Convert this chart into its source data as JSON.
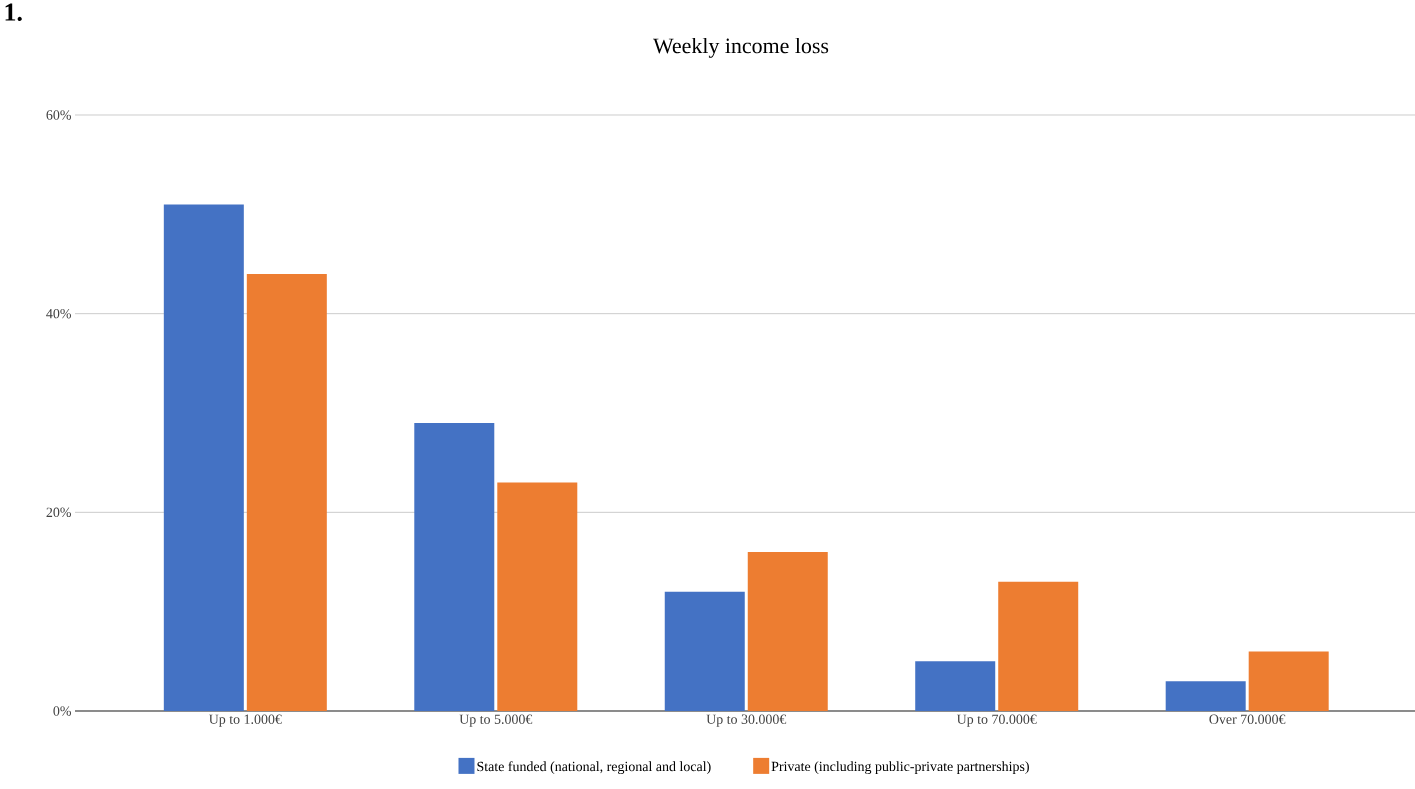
{
  "chart_data": {
    "type": "bar",
    "title": "Weekly income loss",
    "annotations": [
      "1."
    ],
    "categories": [
      "Up to 1.000€",
      "Up to 5.000€",
      "Up to 30.000€",
      "Up to 70.000€",
      "Over 70.000€"
    ],
    "series": [
      {
        "name": "State funded (national, regional and local)",
        "color": "#4472c4",
        "values": [
          51,
          29,
          12,
          5,
          3
        ]
      },
      {
        "name": "Private (including public-private partnerships)",
        "color": "#ed7d31",
        "values": [
          44,
          23,
          16,
          13,
          6
        ]
      }
    ],
    "ylim": [
      0,
      60
    ],
    "yticks": [
      {
        "value": 0,
        "label": "0%"
      },
      {
        "value": 20,
        "label": "20%"
      },
      {
        "value": 40,
        "label": "40%"
      },
      {
        "value": 60,
        "label": "60%"
      }
    ],
    "grid": "y",
    "legend": "bottom"
  }
}
